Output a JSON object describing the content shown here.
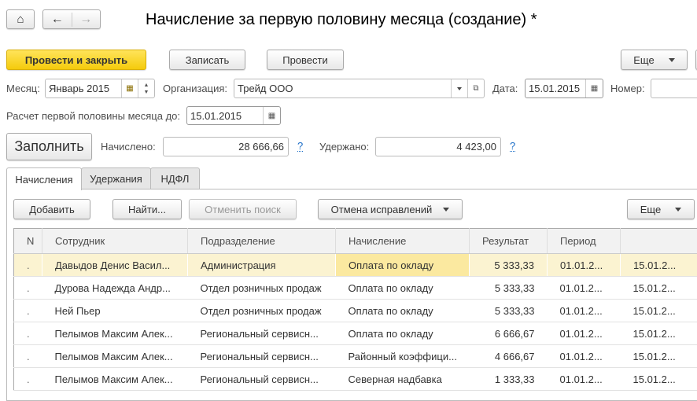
{
  "header": {
    "title": "Начисление за первую половину месяца (создание) *"
  },
  "nav": {
    "home_icon": "home-icon",
    "back_icon": "arrow-left-icon",
    "forward_icon": "arrow-right-icon"
  },
  "toolbar": {
    "post_close": "Провести и закрыть",
    "save": "Записать",
    "post": "Провести",
    "more": "Еще"
  },
  "form": {
    "month_label": "Месяц:",
    "month_value": "Январь 2015",
    "org_label": "Организация:",
    "org_value": "Трейд ООО",
    "date_label": "Дата:",
    "date_value": "15.01.2015",
    "number_label": "Номер:",
    "number_value": "",
    "calc_label": "Расчет первой половины месяца до:",
    "calc_value": "15.01.2015",
    "fill": "Заполнить",
    "accrued_label": "Начислено:",
    "accrued_value": "28 666,66",
    "withheld_label": "Удержано:",
    "withheld_value": "4 423,00",
    "help": "?"
  },
  "tabs": [
    {
      "label": "Начисления",
      "active": true
    },
    {
      "label": "Удержания"
    },
    {
      "label": "НДФЛ"
    }
  ],
  "table_toolbar": {
    "add": "Добавить",
    "find": "Найти...",
    "cancel_search": "Отменить поиск",
    "cancel_corrections": "Отмена исправлений",
    "more": "Еще"
  },
  "table": {
    "columns": [
      "N",
      "Сотрудник",
      "Подразделение",
      "Начисление",
      "Результат",
      "Период",
      ""
    ],
    "rows": [
      [
        "Давыдов Денис Васил...",
        "Администрация",
        "Оплата по окладу",
        "5 333,33",
        "01.01.2...",
        "15.01.2..."
      ],
      [
        "Дурова Надежда Андр...",
        "Отдел розничных продаж",
        "Оплата по окладу",
        "5 333,33",
        "01.01.2...",
        "15.01.2..."
      ],
      [
        "Ней Пьер",
        "Отдел розничных продаж",
        "Оплата по окладу",
        "5 333,33",
        "01.01.2...",
        "15.01.2..."
      ],
      [
        "Пелымов Максим Алек...",
        "Региональный сервисн...",
        "Оплата по окладу",
        "6 666,67",
        "01.01.2...",
        "15.01.2..."
      ],
      [
        "Пелымов Максим Алек...",
        "Региональный сервисн...",
        "Районный коэффици...",
        "4 666,67",
        "01.01.2...",
        "15.01.2..."
      ],
      [
        "Пелымов Максим Алек...",
        "Региональный сервисн...",
        "Северная надбавка",
        "1 333,33",
        "01.01.2...",
        "15.01.2..."
      ]
    ]
  },
  "colors": {
    "primary_button": "#f5cb0c",
    "selected_row": "#fbf3d1",
    "current_cell": "#fbe9a0",
    "link": "#1a6dc7"
  }
}
